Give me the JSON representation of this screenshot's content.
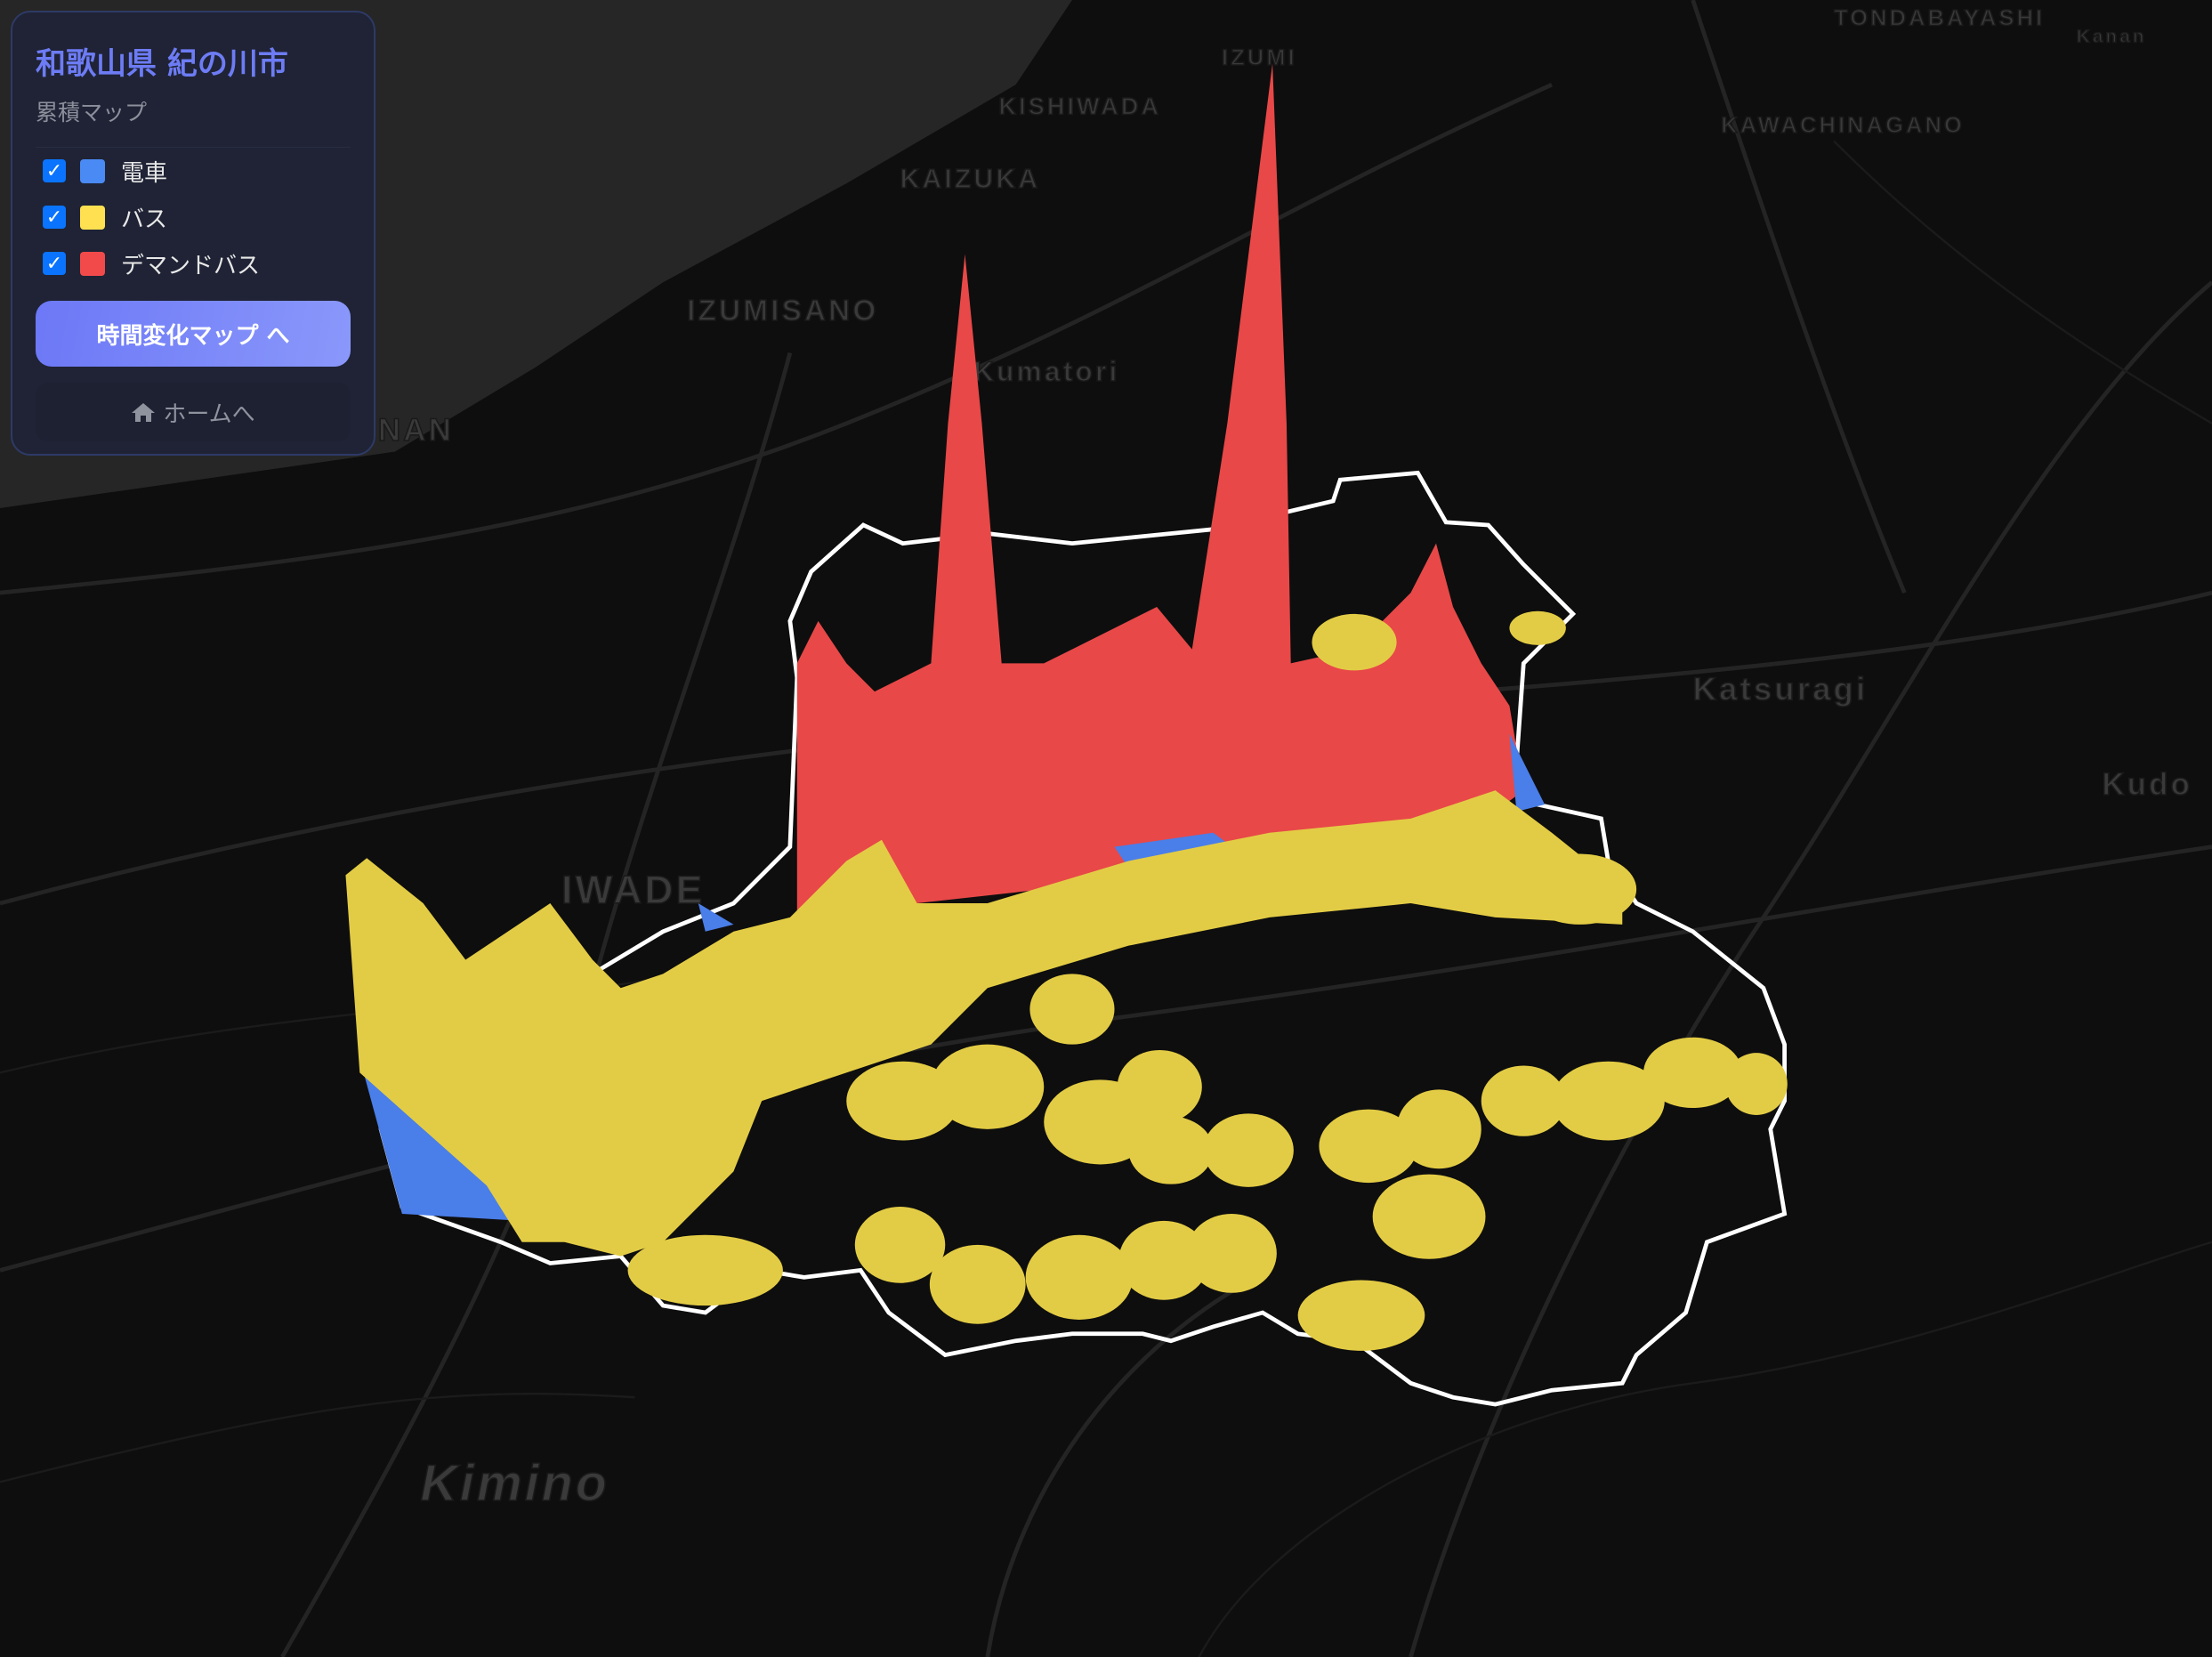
{
  "panel": {
    "title": "和歌山県 紀の川市",
    "subtitle": "累積マップ",
    "layers": [
      {
        "label": "電車",
        "checked": true,
        "color": "#4a8af4"
      },
      {
        "label": "バス",
        "checked": true,
        "color": "#ffe050"
      },
      {
        "label": "デマンドバス",
        "checked": true,
        "color": "#f24a4a"
      }
    ],
    "time_map_button": "時間変化マップ へ",
    "home_link": "ホームへ",
    "home_icon": "home-icon"
  },
  "map": {
    "labels": [
      "TONDABAYASHI",
      "Kanan",
      "IZUMI",
      "KISHIWADA",
      "KAWACHINAGANO",
      "KAIZUKA",
      "IZUMISANO",
      "Kumatori",
      "NAN",
      "Katsuragi",
      "Kudo",
      "IWADE",
      "Kimino"
    ],
    "colors": {
      "train": "#4a7ee8",
      "bus": "#e3cc45",
      "demand_bus": "#e84848",
      "boundary": "#ffffff"
    }
  }
}
